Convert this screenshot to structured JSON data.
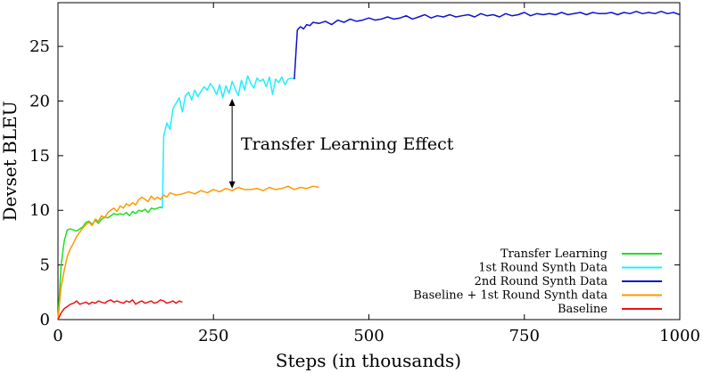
{
  "chart_data": {
    "type": "line",
    "title": "",
    "xlabel": "Steps (in thousands)",
    "ylabel": "Devset BLEU",
    "xlim": [
      0,
      1000
    ],
    "ylim": [
      0,
      29
    ],
    "xticks": [
      0,
      250,
      500,
      750,
      1000
    ],
    "yticks": [
      0,
      5,
      10,
      15,
      20,
      25
    ],
    "grid": false,
    "legend_position": "bottom-right",
    "annotation": {
      "text": "Transfer Learning Effect",
      "arrow_x": 280,
      "arrow_from_y": 12.0,
      "arrow_to_y": 20.2
    },
    "series": [
      {
        "name": "Transfer Learning",
        "color": "#22dd22",
        "x": [
          0,
          5,
          10,
          15,
          20,
          25,
          30,
          35,
          40,
          45,
          50,
          55,
          60,
          65,
          70,
          75,
          80,
          85,
          90,
          95,
          100,
          105,
          110,
          115,
          120,
          125,
          130,
          135,
          140,
          145,
          150,
          155,
          160,
          165,
          168
        ],
        "y": [
          0,
          5.0,
          7.2,
          8.2,
          8.3,
          8.2,
          8.1,
          8.3,
          8.5,
          8.9,
          9.0,
          8.7,
          9.1,
          8.8,
          9.2,
          9.4,
          9.3,
          9.5,
          9.7,
          9.6,
          9.7,
          9.6,
          9.8,
          9.5,
          9.9,
          9.7,
          10.0,
          9.9,
          10.1,
          9.8,
          10.2,
          10.1,
          10.2,
          10.3,
          10.2
        ]
      },
      {
        "name": "1st Round Synth Data",
        "color": "#22eeff",
        "x": [
          168,
          170,
          175,
          180,
          185,
          190,
          195,
          200,
          205,
          210,
          215,
          220,
          225,
          230,
          235,
          240,
          245,
          250,
          255,
          260,
          265,
          270,
          275,
          280,
          285,
          290,
          295,
          300,
          305,
          310,
          315,
          320,
          325,
          330,
          335,
          340,
          345,
          350,
          355,
          360,
          365,
          370,
          375,
          380
        ],
        "y": [
          10.2,
          16.8,
          18.0,
          17.4,
          19.3,
          19.8,
          20.3,
          19.0,
          20.5,
          20.8,
          20.1,
          21.0,
          20.4,
          20.9,
          21.3,
          21.0,
          21.6,
          21.2,
          20.6,
          21.5,
          20.3,
          21.4,
          20.7,
          21.8,
          21.1,
          20.5,
          21.9,
          21.0,
          22.3,
          21.6,
          21.2,
          22.1,
          21.8,
          22.0,
          21.3,
          22.2,
          20.6,
          22.0,
          21.7,
          22.2,
          21.5,
          22.0,
          22.1,
          22.0
        ]
      },
      {
        "name": "2nd Round Synth Data",
        "color": "#1111cc",
        "x": [
          380,
          385,
          390,
          395,
          400,
          405,
          410,
          420,
          430,
          440,
          450,
          460,
          470,
          480,
          490,
          500,
          510,
          520,
          530,
          540,
          550,
          560,
          570,
          580,
          590,
          600,
          610,
          620,
          630,
          640,
          650,
          660,
          670,
          680,
          690,
          700,
          710,
          720,
          730,
          740,
          750,
          760,
          770,
          780,
          790,
          800,
          810,
          820,
          830,
          840,
          850,
          860,
          870,
          880,
          890,
          900,
          910,
          920,
          930,
          940,
          950,
          960,
          970,
          980,
          990,
          1000
        ],
        "y": [
          22.0,
          26.5,
          26.8,
          26.6,
          27.0,
          26.9,
          27.2,
          27.1,
          27.3,
          27.0,
          27.4,
          27.2,
          27.5,
          27.3,
          27.4,
          27.6,
          27.4,
          27.5,
          27.7,
          27.5,
          27.6,
          27.8,
          27.5,
          27.7,
          27.9,
          27.6,
          27.8,
          27.7,
          27.9,
          27.7,
          27.8,
          27.9,
          27.7,
          28.0,
          27.8,
          27.9,
          27.7,
          28.0,
          27.8,
          27.9,
          28.1,
          27.8,
          28.0,
          27.9,
          28.0,
          27.9,
          28.1,
          27.9,
          28.0,
          28.1,
          27.9,
          28.1,
          28.0,
          28.0,
          28.1,
          27.9,
          28.1,
          28.0,
          28.2,
          28.0,
          28.1,
          28.0,
          28.2,
          28.0,
          28.1,
          27.9
        ]
      },
      {
        "name": "Baseline + 1st Round Synth data",
        "color": "#ff9900",
        "x": [
          0,
          5,
          10,
          15,
          20,
          25,
          30,
          35,
          40,
          45,
          50,
          55,
          60,
          65,
          70,
          75,
          80,
          85,
          90,
          95,
          100,
          105,
          110,
          115,
          120,
          125,
          130,
          135,
          140,
          145,
          150,
          155,
          160,
          165,
          170,
          175,
          180,
          190,
          200,
          210,
          220,
          230,
          240,
          250,
          260,
          270,
          280,
          290,
          300,
          310,
          320,
          330,
          340,
          350,
          360,
          370,
          380,
          390,
          400,
          410,
          420
        ],
        "y": [
          0,
          3.0,
          4.5,
          5.8,
          6.5,
          7.0,
          7.6,
          8.0,
          8.4,
          8.7,
          8.9,
          8.6,
          9.2,
          9.0,
          9.5,
          9.3,
          9.8,
          10.0,
          10.2,
          9.9,
          10.4,
          10.2,
          10.6,
          10.4,
          10.7,
          10.5,
          11.0,
          11.2,
          11.0,
          10.8,
          11.3,
          11.0,
          11.2,
          11.0,
          11.4,
          11.2,
          11.6,
          11.4,
          11.5,
          11.7,
          11.5,
          11.8,
          11.6,
          11.9,
          11.7,
          12.0,
          11.8,
          12.1,
          11.9,
          11.9,
          12.0,
          11.8,
          12.1,
          11.9,
          12.0,
          12.2,
          11.9,
          12.1,
          12.0,
          12.2,
          12.1
        ]
      },
      {
        "name": "Baseline",
        "color": "#ee1111",
        "x": [
          0,
          5,
          10,
          15,
          20,
          25,
          30,
          35,
          40,
          45,
          50,
          55,
          60,
          65,
          70,
          75,
          80,
          85,
          90,
          95,
          100,
          105,
          110,
          115,
          120,
          125,
          130,
          135,
          140,
          145,
          150,
          155,
          160,
          165,
          170,
          175,
          180,
          185,
          190,
          195,
          200
        ],
        "y": [
          0,
          0.6,
          1.0,
          1.2,
          1.4,
          1.5,
          1.7,
          1.4,
          1.5,
          1.6,
          1.4,
          1.6,
          1.5,
          1.7,
          1.6,
          1.5,
          1.7,
          1.8,
          1.6,
          1.7,
          1.6,
          1.5,
          1.7,
          1.6,
          1.8,
          1.4,
          1.6,
          1.7,
          1.5,
          1.6,
          1.7,
          1.5,
          1.6,
          1.8,
          1.7,
          1.5,
          1.6,
          1.7,
          1.5,
          1.7,
          1.6
        ]
      }
    ]
  }
}
